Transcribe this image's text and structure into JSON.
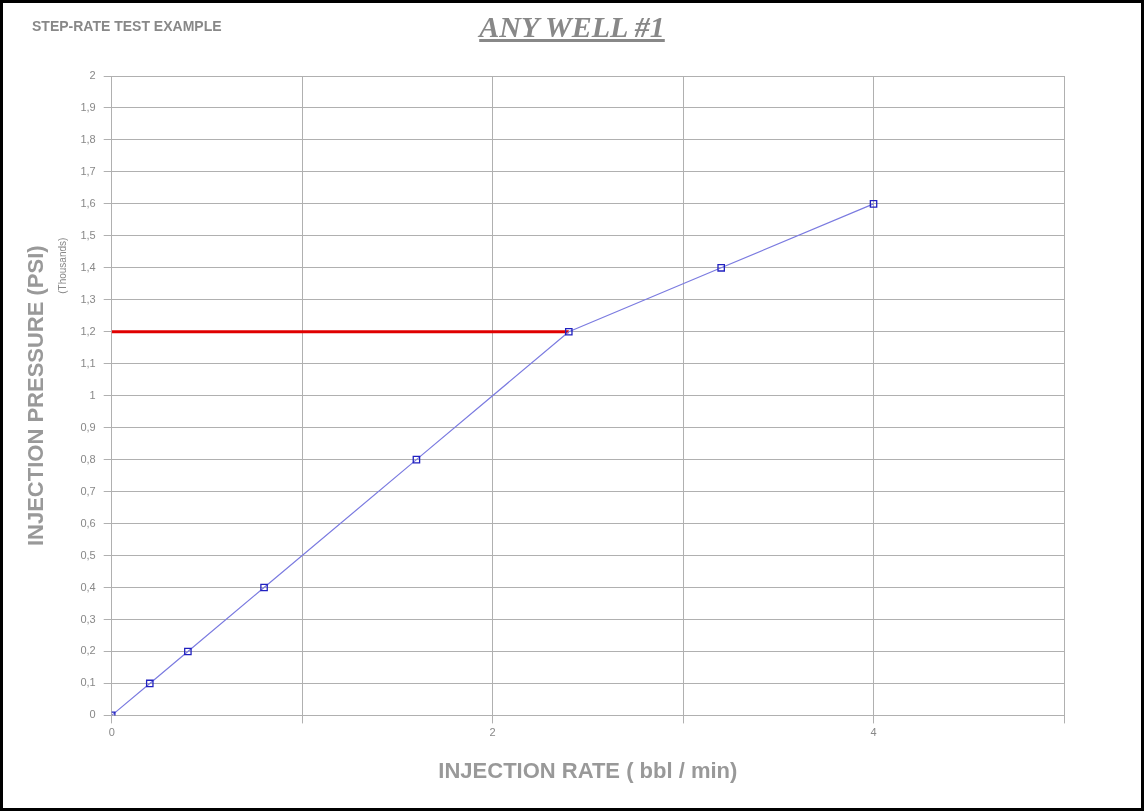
{
  "chart_data": {
    "type": "line",
    "title": "STEP-RATE TEST EXAMPLE",
    "subtitle": "ANY WELL #1",
    "xlabel": "INJECTION RATE ( bbl / min)",
    "ylabel": "INJECTION PRESSURE (PSI)",
    "annotations": [
      "(Thousands)"
    ],
    "xlim": [
      0,
      5
    ],
    "xticks": [
      0,
      {
        "value": 1,
        "label": null
      },
      2,
      {
        "value": 3,
        "label": null
      },
      4,
      {
        "value": 5,
        "label": null
      }
    ],
    "ylim": [
      0,
      2
    ],
    "yticks": [
      0,
      {
        "value": 0.1,
        "label": "0,1"
      },
      {
        "value": 0.2,
        "label": "0,2"
      },
      {
        "value": 0.3,
        "label": "0,3"
      },
      {
        "value": 0.4,
        "label": "0,4"
      },
      {
        "value": 0.5,
        "label": "0,5"
      },
      {
        "value": 0.6,
        "label": "0,6"
      },
      {
        "value": 0.7,
        "label": "0,7"
      },
      {
        "value": 0.8,
        "label": "0,8"
      },
      {
        "value": 0.9,
        "label": "0,9"
      },
      1,
      {
        "value": 1.1,
        "label": "1,1"
      },
      {
        "value": 1.2,
        "label": "1,2"
      },
      {
        "value": 1.3,
        "label": "1,3"
      },
      {
        "value": 1.4,
        "label": "1,4"
      },
      {
        "value": 1.5,
        "label": "1,5"
      },
      {
        "value": 1.6,
        "label": "1,6"
      },
      {
        "value": 1.7,
        "label": "1,7"
      },
      {
        "value": 1.8,
        "label": "1,8"
      },
      {
        "value": 1.9,
        "label": "1,9"
      },
      2
    ],
    "grid": true,
    "marker": "square",
    "line_style": "solid",
    "series": [
      {
        "color": "#7b7be0",
        "x": [
          0,
          0.2,
          0.4,
          0.8,
          1.6,
          2.4,
          3.2,
          4
        ],
        "values": [
          0,
          0.1,
          0.2,
          0.4,
          0.8,
          1.2,
          1.4,
          1.6
        ]
      },
      {
        "color": "#e00000",
        "marker": "none",
        "x": [
          0,
          2.4
        ],
        "values": [
          1.2,
          1.2
        ]
      }
    ]
  }
}
